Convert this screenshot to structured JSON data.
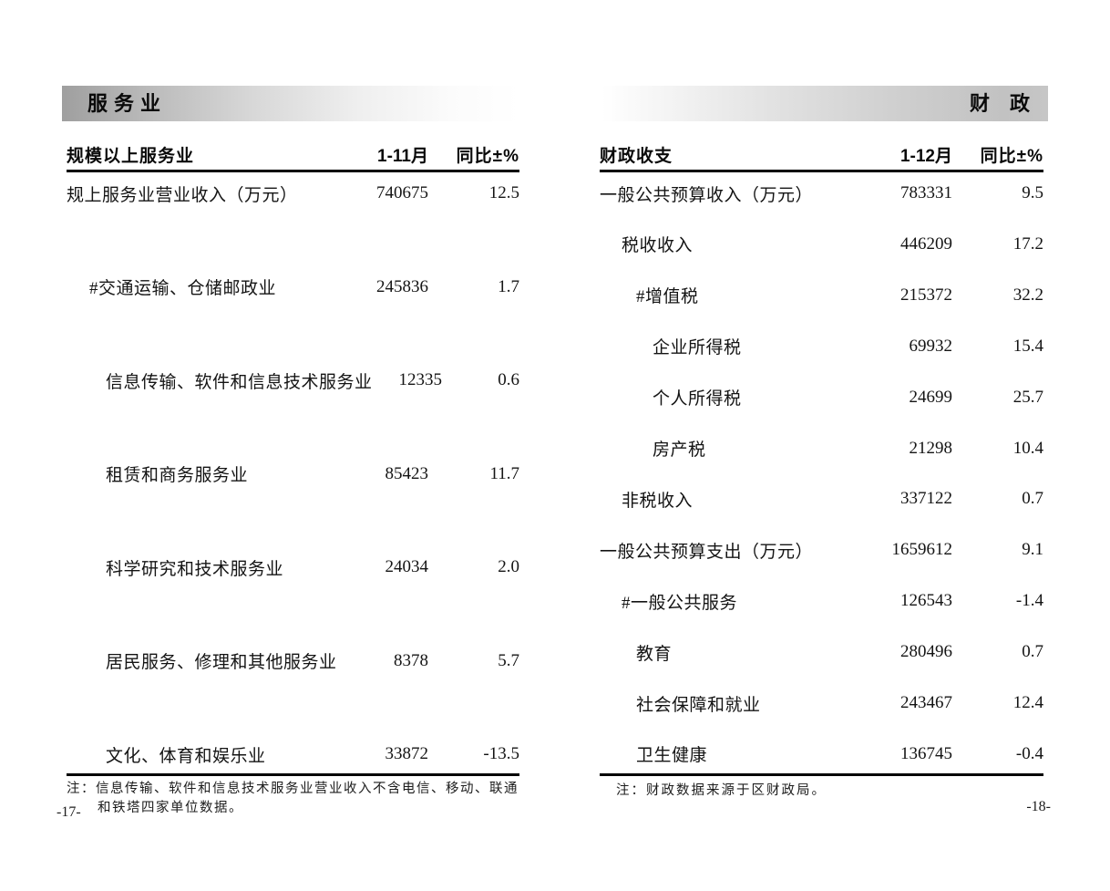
{
  "pages": {
    "left": {
      "section_title": "服务业",
      "table": {
        "name": "规模以上服务业",
        "col_period": "1-11月",
        "col_yoy": "同比±%",
        "rows": [
          {
            "label": "规上服务业营业收入（万元）",
            "value": "740675",
            "yoy": "12.5"
          },
          {
            "label": "#交通运输、仓储邮政业",
            "value": "245836",
            "yoy": "1.7"
          },
          {
            "label": "信息传输、软件和信息技术服务业",
            "value": "12335",
            "yoy": "0.6"
          },
          {
            "label": "租赁和商务服务业",
            "value": "85423",
            "yoy": "11.7"
          },
          {
            "label": "科学研究和技术服务业",
            "value": "24034",
            "yoy": "2.0"
          },
          {
            "label": "居民服务、修理和其他服务业",
            "value": "8378",
            "yoy": "5.7"
          },
          {
            "label": "文化、体育和娱乐业",
            "value": "33872",
            "yoy": "-13.5"
          }
        ]
      },
      "note": "注：信息传输、软件和信息技术服务业营业收入不含电信、移动、联通和铁塔四家单位数据。",
      "page_number": "-17-"
    },
    "right": {
      "section_title": "财　政",
      "table": {
        "name": "财政收支",
        "col_period": "1-12月",
        "col_yoy": "同比±%",
        "rows": [
          {
            "label": "一般公共预算收入（万元）",
            "value": "783331",
            "yoy": "9.5"
          },
          {
            "label": "税收收入",
            "value": "446209",
            "yoy": "17.2"
          },
          {
            "label": "#增值税",
            "value": "215372",
            "yoy": "32.2"
          },
          {
            "label": "企业所得税",
            "value": "69932",
            "yoy": "15.4"
          },
          {
            "label": "个人所得税",
            "value": "24699",
            "yoy": "25.7"
          },
          {
            "label": "房产税",
            "value": "21298",
            "yoy": "10.4"
          },
          {
            "label": "非税收入",
            "value": "337122",
            "yoy": "0.7"
          },
          {
            "label": "一般公共预算支出（万元）",
            "value": "1659612",
            "yoy": "9.1"
          },
          {
            "label": "#一般公共服务",
            "value": "126543",
            "yoy": "-1.4"
          },
          {
            "label": "教育",
            "value": "280496",
            "yoy": "0.7"
          },
          {
            "label": "社会保障和就业",
            "value": "243467",
            "yoy": "12.4"
          },
          {
            "label": "卫生健康",
            "value": "136745",
            "yoy": "-0.4"
          }
        ]
      },
      "note": "注：财政数据来源于区财政局。",
      "page_number": "-18-"
    }
  }
}
